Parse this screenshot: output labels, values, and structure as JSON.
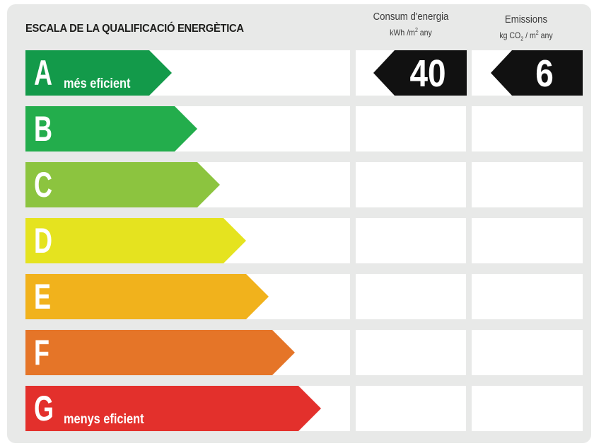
{
  "title": "ESCALA DE LA QUALIFICACIÓ ENERGÈTICA",
  "columns": {
    "consumption": {
      "heading": "Consum d'energia",
      "unit_pre": "kWh /m",
      "unit_sup": "2",
      "unit_post": " any"
    },
    "emissions": {
      "heading": "Emissions",
      "unit_pre": "kg CO",
      "unit_sub": "2",
      "unit_mid": " / m",
      "unit_sup": "2",
      "unit_post": " any"
    }
  },
  "classes": [
    {
      "letter": "A",
      "label": "més eficient",
      "color": "#139a4a",
      "fraction": 0.45
    },
    {
      "letter": "B",
      "label": "",
      "color": "#23ad4c",
      "fraction": 0.53
    },
    {
      "letter": "C",
      "label": "",
      "color": "#8cc43f",
      "fraction": 0.6
    },
    {
      "letter": "D",
      "label": "",
      "color": "#e5e31f",
      "fraction": 0.68
    },
    {
      "letter": "E",
      "label": "",
      "color": "#f1b21c",
      "fraction": 0.75
    },
    {
      "letter": "F",
      "label": "",
      "color": "#e57528",
      "fraction": 0.83
    },
    {
      "letter": "G",
      "label": "menys eficient",
      "color": "#e3302c",
      "fraction": 0.91
    }
  ],
  "rating": {
    "class": "A",
    "consumption_value": "40",
    "emissions_value": "6"
  }
}
